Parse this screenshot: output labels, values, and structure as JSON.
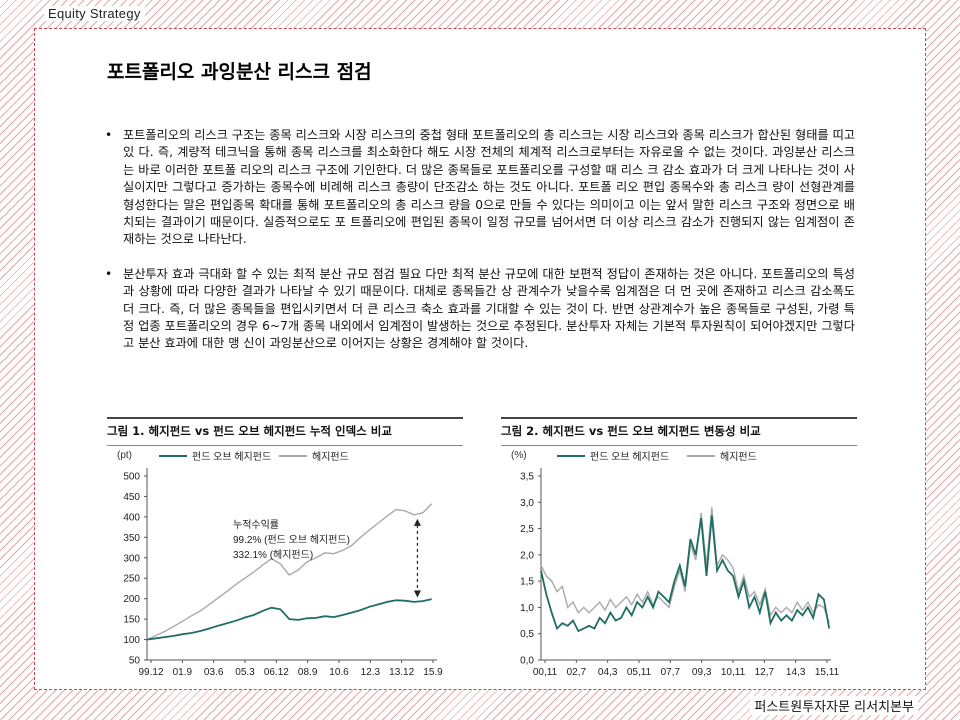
{
  "header": {
    "label": "Equity  Strategy"
  },
  "footer": {
    "label": "퍼스트원투자자문 리서치본부"
  },
  "page": {
    "title": "포트폴리오 과잉분산 리스크 점검",
    "bullets": [
      "포트폴리오의 리스크 구조는 종목 리스크와 시장 리스크의 중첩 형태 포트폴리오의 총 리스크는 시장 리스크와 종목 리스크가 합산된 형태를 띠고 있 다. 즉, 계량적 테크닉을 통해 종목 리스크를 최소화한다 해도 시장 전체의 체계적 리스크로부터는 자유로울 수 없는 것이다. 과잉분산 리스크는 바로 이러한 포트폴 리오의 리스크 구조에 기인한다. 더 많은 종목들로 포트폴리오를 구성할 때 리스 크 감소 효과가 더 크게 나타나는 것이 사실이지만 그렇다고 증가하는 종목수에 비례해 리스크 총량이 단조감소 하는 것도 아니다. 포트폴 리오 편입 종목수와 총 리스크 량이 선형관계를 형성한다는 말은 편입종목 확대를 통해 포트폴리오의 총 리스크 량을 0으로 만들 수 있다는 의미이고 이는 앞서 말한 리스크 구조와 정면으로 배치되는 결과이기 때문이다. 실증적으로도 포 트폴리오에 편입된 종목이 일정 규모를 넘어서면 더 이상 리스크 감소가 진행되지 않는 임계점이 존재하는 것으로 나타난다.",
      "분산투자 효과 극대화 할 수 있는 최적 분산 규모 점검 필요 다만 최적 분산 규모에 대한 보편적 정답이 존재하는 것은 아니다. 포트폴리오의 특성과 상황에 따라 다양한 결과가 나타날 수 있기 때문이다. 대체로 종목들간 상 관계수가 낮을수록 임계점은 더 먼 곳에 존재하고 리스크 감소폭도 더 크다. 즉, 더 많은 종목들을 편입시키면서 더 큰 리스크 축소 효과를 기대할 수 있는 것이 다. 반면 상관계수가 높은 종목들로 구성된, 가령 특정 업종 포트폴리오의 경우 6~7개 종목 내외에서 임계점이 발생하는 것으로 추정된다. 분산투자 자체는 기본적 투자원칙이 되어야겠지만 그렇다고 분산 효과에 대한 맹 신이 과잉분산으로 이어지는 상황은 경계해야 할 것이다."
    ]
  },
  "chart_data": [
    {
      "type": "line",
      "title": "그림 1. 헤지펀드 vs 펀드 오브 헤지펀드 누적 인덱스 비교",
      "ylabel": "(pt)",
      "ylim": [
        50,
        500
      ],
      "yticks": [
        "50",
        "100",
        "150",
        "200",
        "250",
        "300",
        "350",
        "400",
        "450",
        "500"
      ],
      "xticks": [
        "99.12",
        "01.9",
        "03.6",
        "05.3",
        "06.12",
        "08.9",
        "10.6",
        "12.3",
        "13.12",
        "15.9"
      ],
      "legend_position": "top",
      "annotation": {
        "lines": [
          "누적수익률",
          "99.2% (펀드 오브 헤지펀드)",
          "332.1% (헤지펀드)"
        ]
      },
      "series": [
        {
          "name": "펀드 오브 헤지펀드",
          "color": "#1e6e62",
          "x": [
            0,
            0.5,
            1,
            1.5,
            2,
            2.5,
            3,
            3.5,
            4,
            4.5,
            5,
            5.5,
            6,
            6.5,
            7,
            7.5,
            8,
            8.5,
            9,
            9.5,
            10,
            10.5,
            11,
            11.5,
            12,
            12.5,
            13,
            13.5,
            14,
            14.5,
            15,
            15.5,
            16
          ],
          "values": [
            100,
            103,
            106,
            109,
            113,
            116,
            121,
            127,
            134,
            140,
            146,
            154,
            160,
            170,
            178,
            174,
            150,
            148,
            152,
            153,
            157,
            155,
            160,
            166,
            172,
            180,
            186,
            192,
            196,
            195,
            192,
            194,
            199
          ]
        },
        {
          "name": "헤지펀드",
          "color": "#aaaaaa",
          "x": [
            0,
            0.5,
            1,
            1.5,
            2,
            2.5,
            3,
            3.5,
            4,
            4.5,
            5,
            5.5,
            6,
            6.5,
            7,
            7.5,
            8,
            8.5,
            9,
            9.5,
            10,
            10.5,
            11,
            11.5,
            12,
            12.5,
            13,
            13.5,
            14,
            14.5,
            15,
            15.5,
            16
          ],
          "values": [
            100,
            110,
            120,
            132,
            145,
            158,
            170,
            186,
            202,
            218,
            235,
            250,
            265,
            282,
            298,
            285,
            258,
            270,
            290,
            300,
            312,
            310,
            318,
            330,
            350,
            368,
            385,
            402,
            418,
            415,
            405,
            410,
            432
          ]
        }
      ]
    },
    {
      "type": "line",
      "title": "그림 2. 헤지펀드 vs 펀드 오브 헤지펀드 변동성 비교",
      "ylabel": "(%)",
      "ylim": [
        0,
        3.5
      ],
      "yticks": [
        "0,0",
        "0,5",
        "1,0",
        "1,5",
        "2,0",
        "2,5",
        "3,0",
        "3,5"
      ],
      "xticks": [
        "00,11",
        "02,7",
        "04,3",
        "05,11",
        "07,7",
        "09,3",
        "10,11",
        "12,7",
        "14,3",
        "15,11"
      ],
      "legend_position": "top",
      "series": [
        {
          "name": "펀드 오브 헤지펀드",
          "color": "#1e6e62",
          "x": [
            0,
            0.3,
            0.6,
            0.9,
            1.2,
            1.5,
            1.8,
            2.1,
            2.4,
            2.7,
            3,
            3.3,
            3.6,
            3.9,
            4.2,
            4.5,
            4.8,
            5.1,
            5.4,
            5.7,
            6,
            6.3,
            6.6,
            6.9,
            7.2,
            7.5,
            7.8,
            8.1,
            8.4,
            8.7,
            9,
            9.3,
            9.6,
            9.9,
            10.2,
            10.5,
            10.8,
            11.1,
            11.4,
            11.7,
            12,
            12.3,
            12.6,
            12.9,
            13.2,
            13.5,
            13.8,
            14.1,
            14.4,
            14.7,
            15,
            15.3,
            15.6,
            15.9,
            16.2
          ],
          "values": [
            1.7,
            1.25,
            0.9,
            0.6,
            0.7,
            0.65,
            0.75,
            0.55,
            0.6,
            0.65,
            0.6,
            0.8,
            0.7,
            0.9,
            0.75,
            0.8,
            1.0,
            0.85,
            1.1,
            1.0,
            1.2,
            1.0,
            1.3,
            1.2,
            1.1,
            1.5,
            1.8,
            1.4,
            2.3,
            2.0,
            2.7,
            1.6,
            2.75,
            1.7,
            1.9,
            1.7,
            1.6,
            1.2,
            1.5,
            1.0,
            1.2,
            0.9,
            1.3,
            0.7,
            0.9,
            0.75,
            0.85,
            0.75,
            0.95,
            0.85,
            1.0,
            0.8,
            1.25,
            1.15,
            0.6
          ]
        },
        {
          "name": "헤지펀드",
          "color": "#aaaaaa",
          "x": [
            0,
            0.3,
            0.6,
            0.9,
            1.2,
            1.5,
            1.8,
            2.1,
            2.4,
            2.7,
            3,
            3.3,
            3.6,
            3.9,
            4.2,
            4.5,
            4.8,
            5.1,
            5.4,
            5.7,
            6,
            6.3,
            6.6,
            6.9,
            7.2,
            7.5,
            7.8,
            8.1,
            8.4,
            8.7,
            9,
            9.3,
            9.6,
            9.9,
            10.2,
            10.5,
            10.8,
            11.1,
            11.4,
            11.7,
            12,
            12.3,
            12.6,
            12.9,
            13.2,
            13.5,
            13.8,
            14.1,
            14.4,
            14.7,
            15,
            15.3,
            15.6,
            15.9,
            16.2
          ],
          "values": [
            1.8,
            1.6,
            1.5,
            1.3,
            1.4,
            1.0,
            1.1,
            0.9,
            1.0,
            0.9,
            1.0,
            1.1,
            0.95,
            1.15,
            1.0,
            1.1,
            1.2,
            1.05,
            1.25,
            1.1,
            1.3,
            1.05,
            1.2,
            1.1,
            1.0,
            1.4,
            1.7,
            1.3,
            2.2,
            1.9,
            2.8,
            1.8,
            2.9,
            1.8,
            2.0,
            1.9,
            1.75,
            1.3,
            1.6,
            1.2,
            1.3,
            1.05,
            1.35,
            0.85,
            1.0,
            0.9,
            1.0,
            0.9,
            1.1,
            0.95,
            1.1,
            0.9,
            1.05,
            1.0,
            0.7
          ]
        }
      ]
    }
  ]
}
